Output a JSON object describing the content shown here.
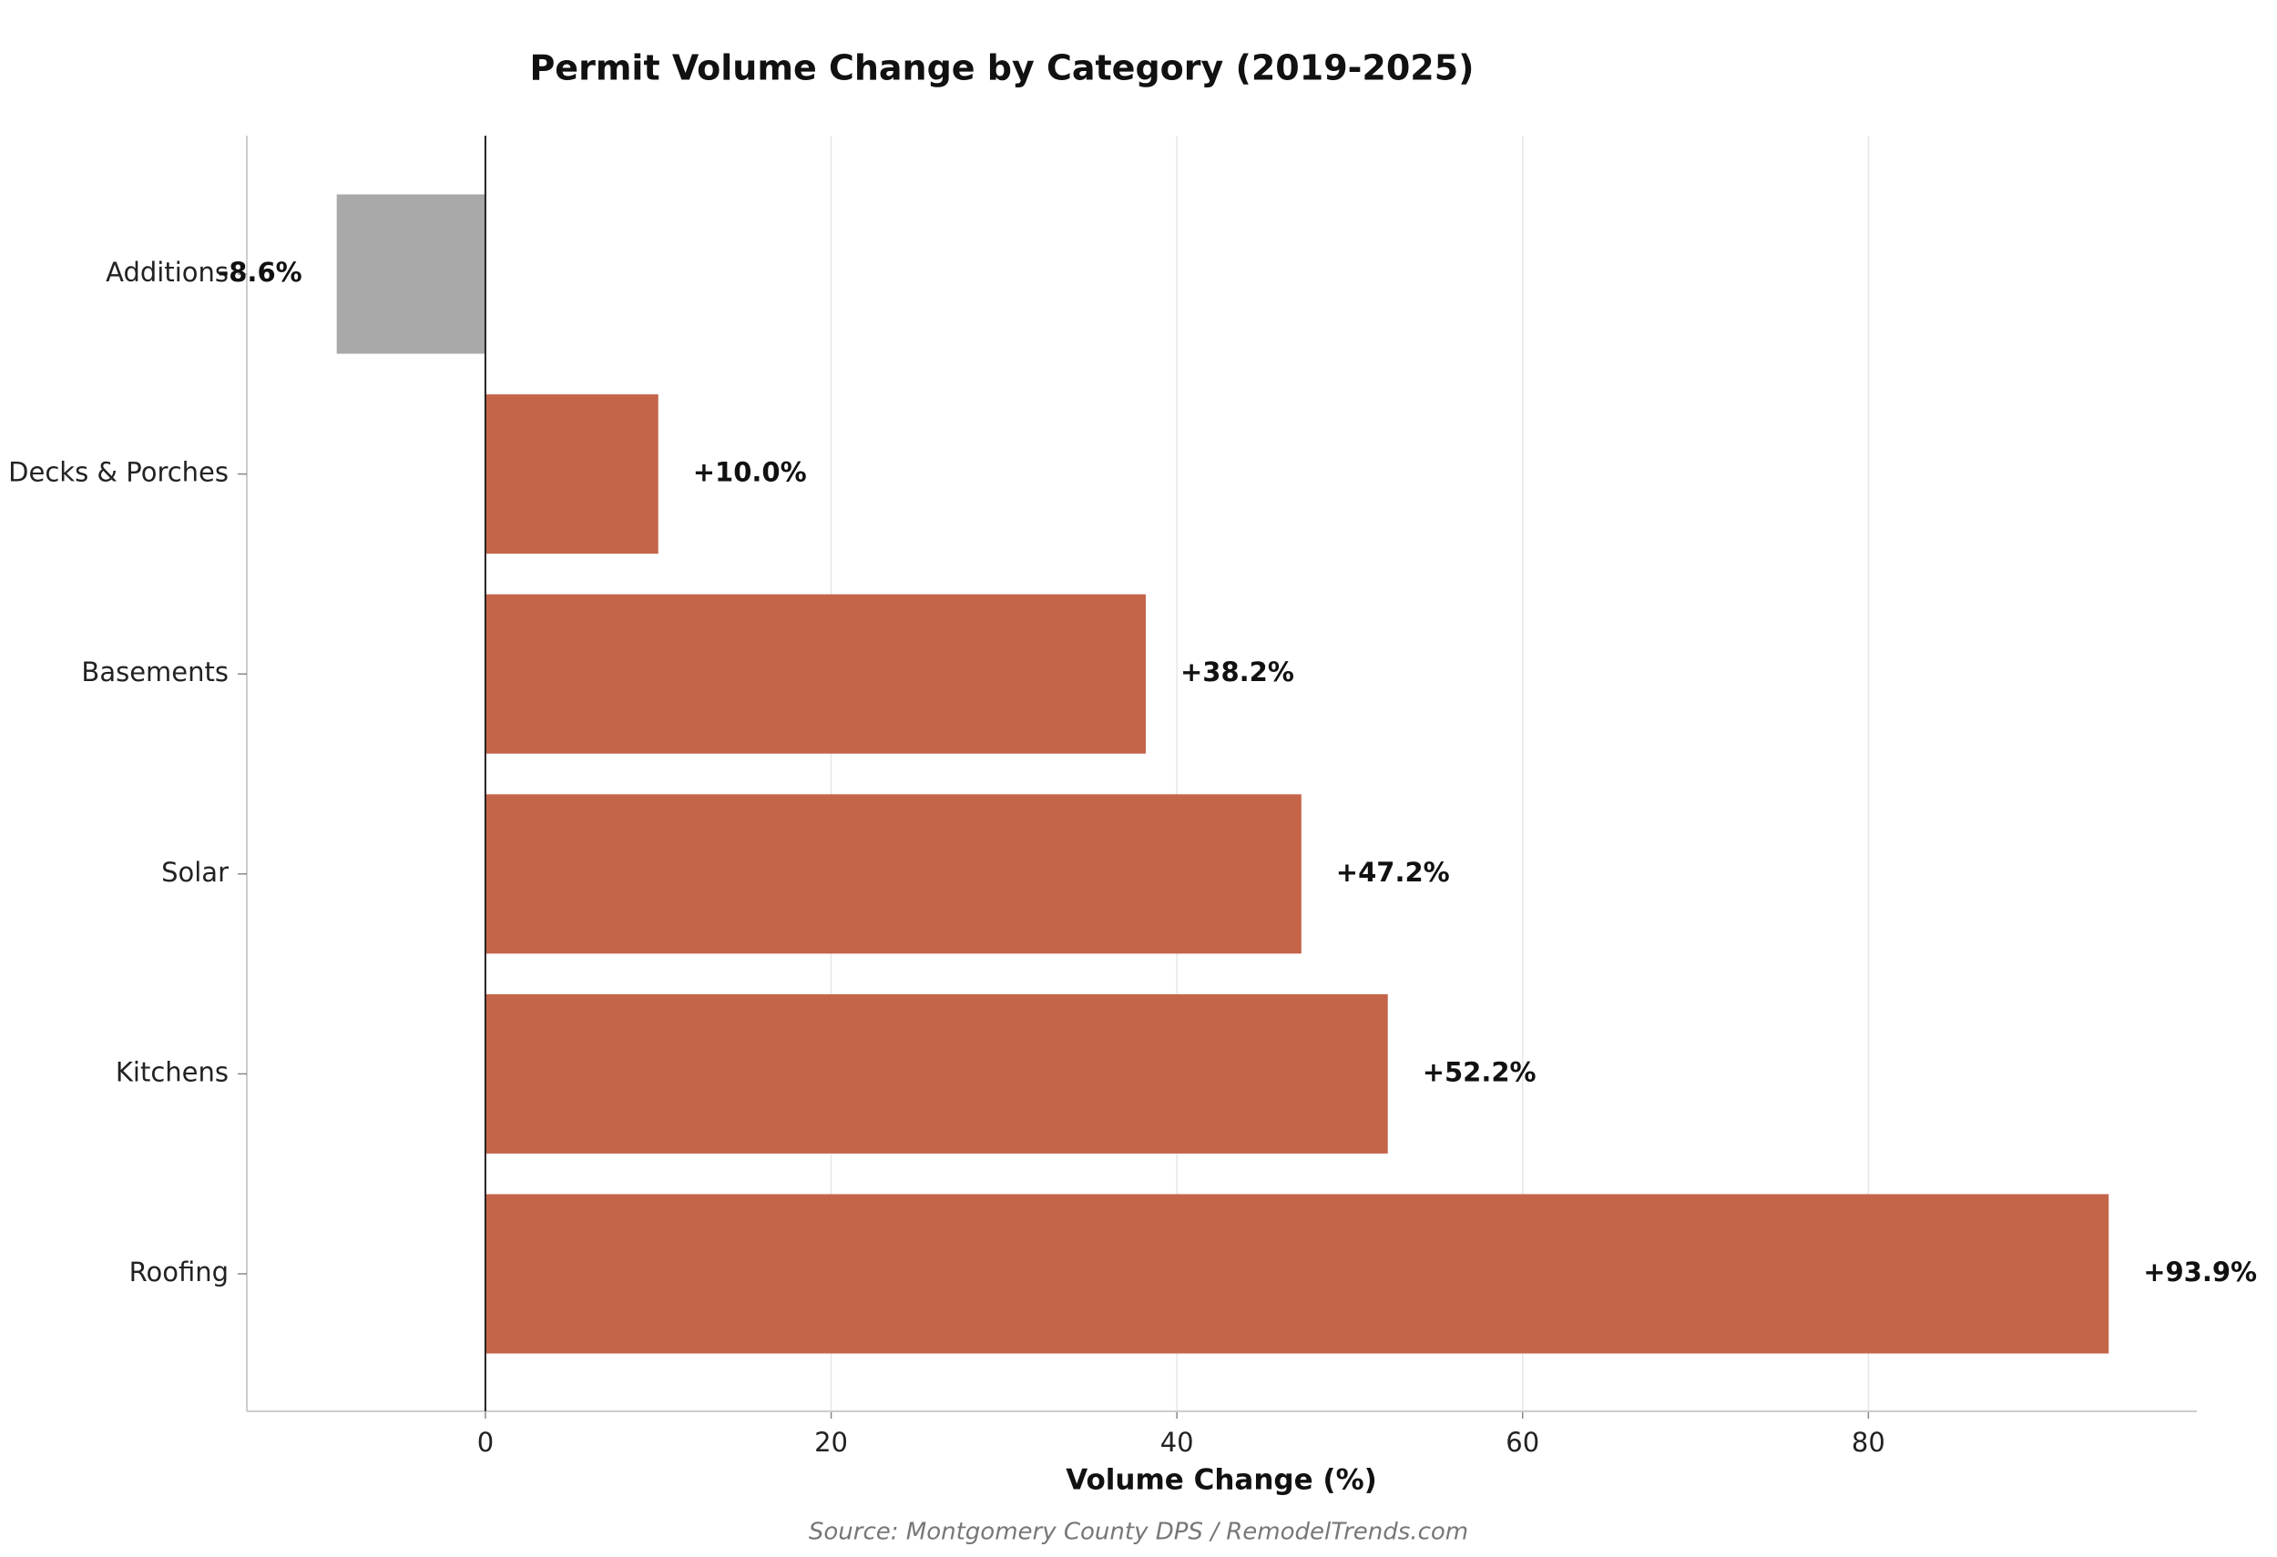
{
  "chart_data": {
    "type": "barh",
    "title": "Permit Volume Change by Category (2019-2025)",
    "xlabel": "Volume Change (%)",
    "source": "Source: Montgomery County DPS / RemodelTrends.com",
    "categories": [
      "Additions",
      "Decks & Porches",
      "Basements",
      "Solar",
      "Kitchens",
      "Roofing"
    ],
    "values": [
      -8.6,
      10.0,
      38.2,
      47.2,
      52.2,
      93.9
    ],
    "value_labels": [
      "-8.6%",
      "+10.0%",
      "+38.2%",
      "+47.2%",
      "+52.2%",
      "+93.9%"
    ],
    "colors": [
      "#a9a9a9",
      "#c4654a",
      "#c4654a",
      "#c4654a",
      "#c4654a",
      "#c4654a"
    ],
    "xlim": [
      -13.8,
      99
    ],
    "xticks": [
      0,
      20,
      40,
      60,
      80
    ],
    "grid": true
  }
}
